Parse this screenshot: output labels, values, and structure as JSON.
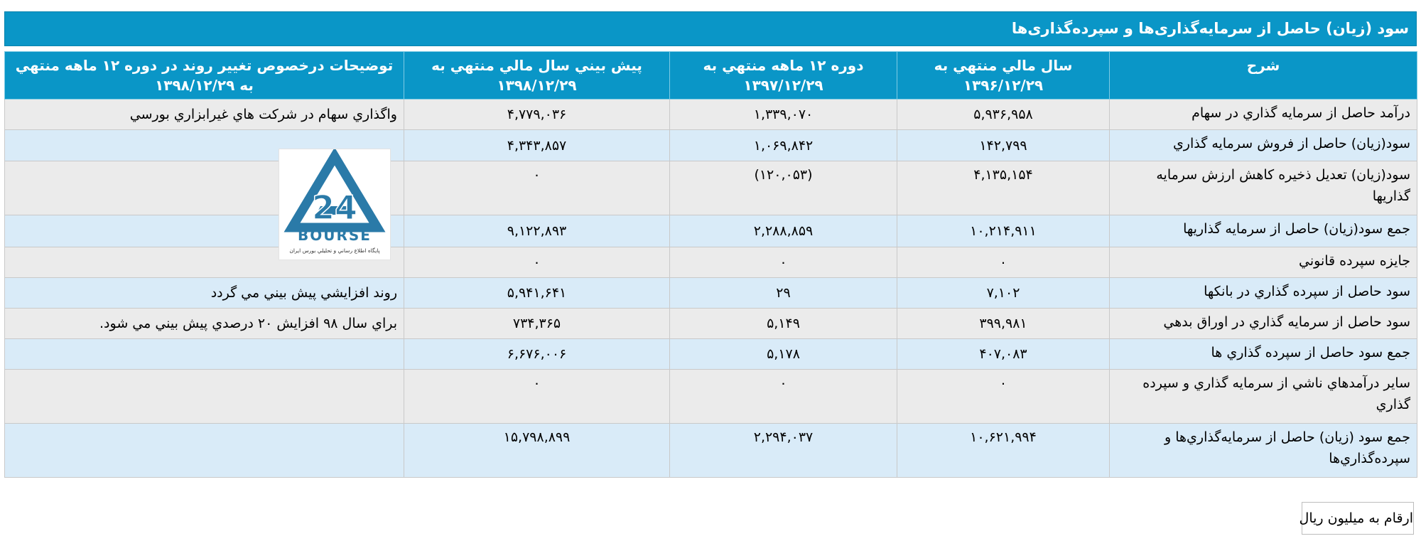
{
  "title": "سود (زیان) حاصل از سرمایه‌گذاری‌ها و سپرده‌گذاری‌ها",
  "columns": [
    "شرح",
    "سال مالي منتهي به ۱۳۹۶/۱۲/۲۹",
    "دوره ۱۲ ماهه منتهي به ۱۳۹۷/۱۲/۲۹",
    "پيش بيني سال مالي منتهي به ۱۳۹۸/۱۲/۲۹",
    "توضيحات درخصوص تغيير روند در دوره ۱۲ ماهه منتهي به ۱۳۹۸/۱۲/۲۹"
  ],
  "rows": [
    {
      "label": "درآمد حاصل از سرمايه گذاري در سهام",
      "v1": "۵,۹۳۶,۹۵۸",
      "v2": "۱,۳۳۹,۰۷۰",
      "v3": "۴,۷۷۹,۰۳۶",
      "note": "واگذاري سهام در شرکت هاي غيرابزاري بورسي"
    },
    {
      "label": "سود(زيان) حاصل از فروش سرمايه گذاري",
      "v1": "۱۴۲,۷۹۹",
      "v2": "۱,۰۶۹,۸۴۲",
      "v3": "۴,۳۴۳,۸۵۷",
      "note": ""
    },
    {
      "label": "سود(زيان) تعديل ذخيره کاهش ارزش سرمايه گذاريها",
      "v1": "۴,۱۳۵,۱۵۴",
      "v2": "(۱۲۰,۰۵۳)",
      "v3": "۰",
      "note": "",
      "v2_negative": true
    },
    {
      "label": "جمع سود(زيان) حاصل از سرمايه گذاريها",
      "v1": "۱۰,۲۱۴,۹۱۱",
      "v2": "۲,۲۸۸,۸۵۹",
      "v3": "۹,۱۲۲,۸۹۳",
      "note": ""
    },
    {
      "label": "جايزه سپرده قانوني",
      "v1": "۰",
      "v2": "۰",
      "v3": "۰",
      "note": ""
    },
    {
      "label": "سود حاصل از سپرده گذاري در بانکها",
      "v1": "۷,۱۰۲",
      "v2": "۲۹",
      "v3": "۵,۹۴۱,۶۴۱",
      "note": "روند افزايشي پيش بيني مي گردد"
    },
    {
      "label": "سود حاصل از سرمايه گذاري در اوراق بدهي",
      "v1": "۳۹۹,۹۸۱",
      "v2": "۵,۱۴۹",
      "v3": "۷۳۴,۳۶۵",
      "note": "براي سال ۹۸ افزايش ۲۰ درصدي پيش بيني مي شود."
    },
    {
      "label": "جمع سود حاصل از سپرده گذاري ها",
      "v1": "۴۰۷,۰۸۳",
      "v2": "۵,۱۷۸",
      "v3": "۶,۶۷۶,۰۰۶",
      "note": ""
    },
    {
      "label": "ساير درآمدهاي ناشي از سرمايه گذاري و سپرده گذاري",
      "v1": "۰",
      "v2": "۰",
      "v3": "۰",
      "note": ""
    },
    {
      "label": "جمع سود (زيان) حاصل از سرمايه‌گذاري‌ها و سپرده‌گذاري‌ها",
      "v1": "۱۰,۶۲۱,۹۹۴",
      "v2": "۲,۲۹۴,۰۳۷",
      "v3": "۱۵,۷۹۸,۸۹۹",
      "note": ""
    }
  ],
  "logo": {
    "brand_text": "BOURSE",
    "number_text": "24",
    "tagline": "پايگاه اطلاع رساني و تحليلي بورس ايران",
    "color": "#2a7aa8"
  },
  "unit_note": "ارقام به ميليون ريال"
}
